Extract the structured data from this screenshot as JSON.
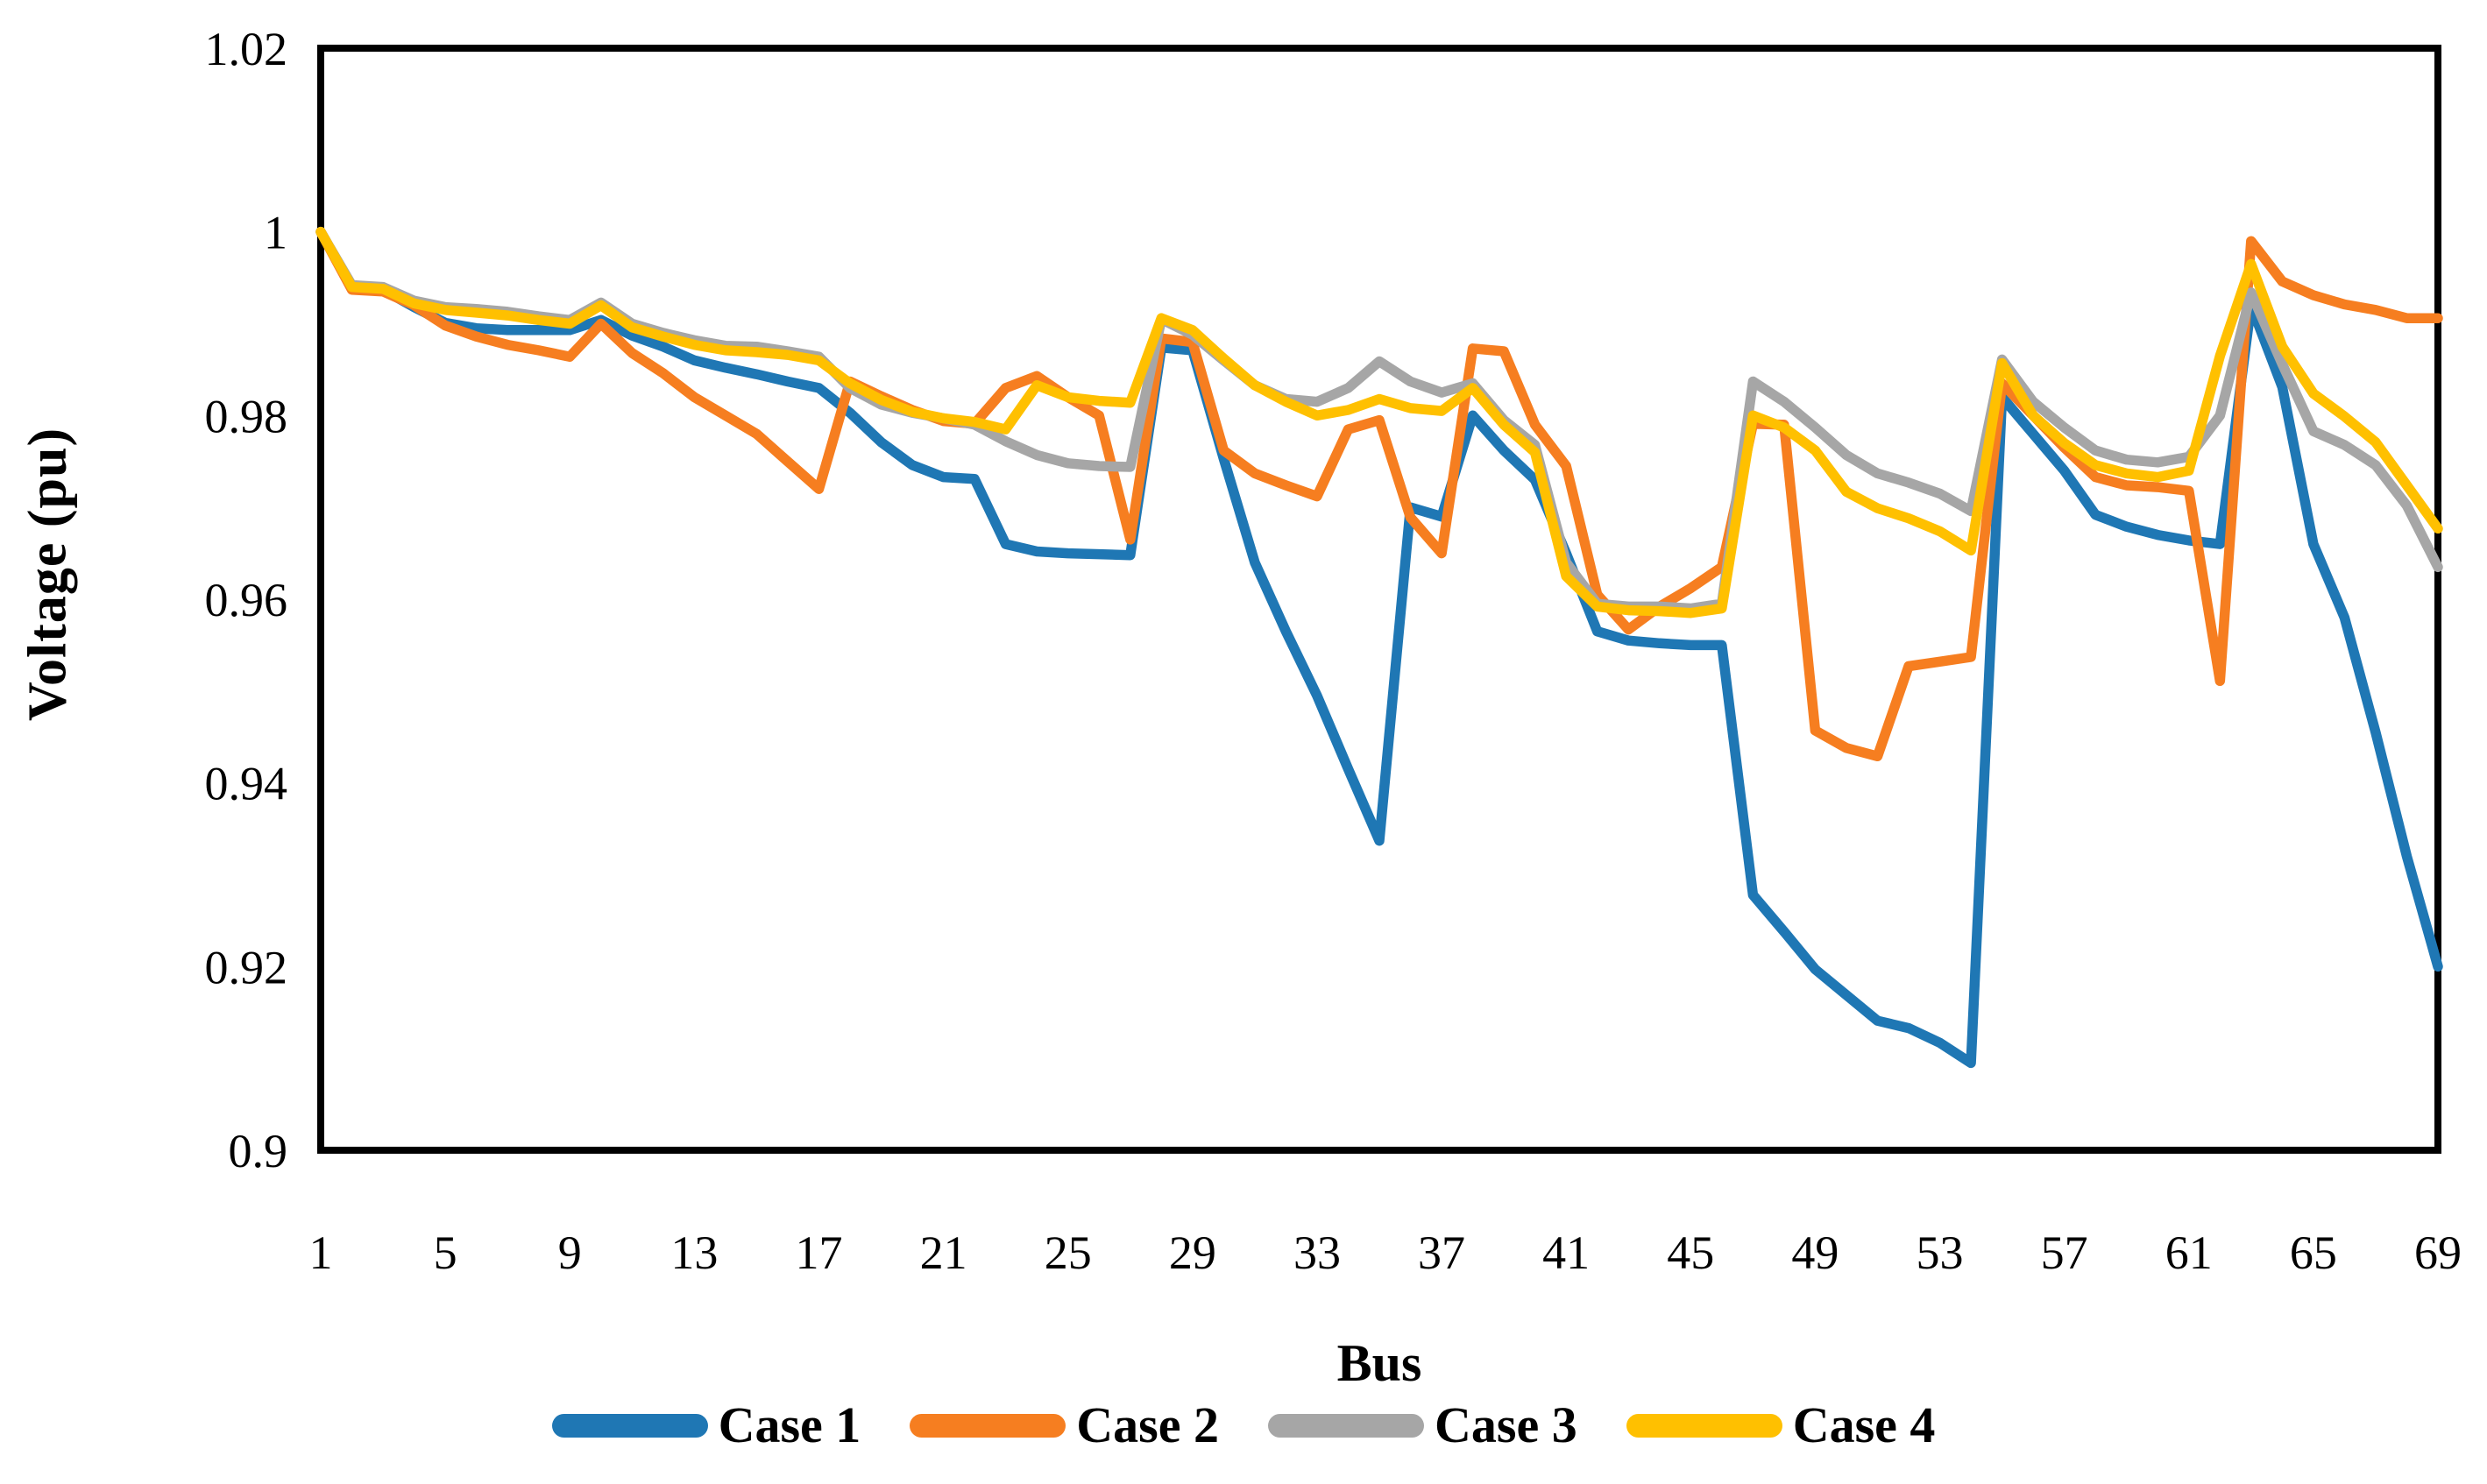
{
  "figure_title": "",
  "y_axis": {
    "title": "Voltage (pu)"
  },
  "x_axis": {
    "title": "Bus"
  },
  "chart_data": {
    "type": "line",
    "title": "",
    "xlabel": "Bus",
    "ylabel": "Voltage (pu)",
    "x_start": 1,
    "x_end": 69,
    "x_tick_values": [
      1,
      5,
      9,
      13,
      17,
      21,
      25,
      29,
      33,
      37,
      41,
      45,
      49,
      53,
      57,
      61,
      65,
      69
    ],
    "x_tick_labels": [
      "1",
      "5",
      "9",
      "13",
      "17",
      "21",
      "25",
      "29",
      "33",
      "37",
      "41",
      "45",
      "49",
      "53",
      "57",
      "61",
      "65",
      "69"
    ],
    "y_tick_values": [
      0.9,
      0.92,
      0.94,
      0.96,
      0.98,
      1.0,
      1.02
    ],
    "y_tick_labels": [
      "0.9",
      "0.92",
      "0.94",
      "0.96",
      "0.98",
      "1",
      "1.02"
    ],
    "ylim": [
      0.9,
      1.02
    ],
    "grid": false,
    "legend_position": "bottom",
    "plot_border_color": "#000000",
    "series": [
      {
        "name": "Case 1",
        "color": "#1F77B4",
        "values": [
          1.0,
          0.994,
          0.9937,
          0.9918,
          0.9901,
          0.9895,
          0.9893,
          0.9893,
          0.9893,
          0.9904,
          0.9887,
          0.9875,
          0.986,
          0.9852,
          0.9845,
          0.9837,
          0.983,
          0.9803,
          0.9771,
          0.9746,
          0.9733,
          0.9731,
          0.966,
          0.9652,
          0.965,
          0.9649,
          0.9648,
          0.9874,
          0.9871,
          0.9753,
          0.964,
          0.9565,
          0.9495,
          0.9415,
          0.9337,
          0.97,
          0.969,
          0.98,
          0.9762,
          0.973,
          0.965,
          0.9565,
          0.9555,
          0.9552,
          0.955,
          0.955,
          0.9278,
          0.9238,
          0.9197,
          0.9169,
          0.9141,
          0.9133,
          0.9117,
          0.9095,
          0.982,
          0.978,
          0.974,
          0.9692,
          0.9679,
          0.967,
          0.9664,
          0.966,
          0.992,
          0.9831,
          0.966,
          0.958,
          0.9455,
          0.932,
          0.92
        ]
      },
      {
        "name": "Case 2",
        "color": "#F67E20",
        "values": [
          1.0,
          0.9937,
          0.9935,
          0.992,
          0.9898,
          0.9886,
          0.9877,
          0.9871,
          0.9864,
          0.99,
          0.9868,
          0.9846,
          0.982,
          0.98,
          0.978,
          0.975,
          0.972,
          0.9837,
          0.9821,
          0.9806,
          0.9794,
          0.9791,
          0.983,
          0.9843,
          0.982,
          0.98,
          0.9665,
          0.9884,
          0.988,
          0.9762,
          0.9737,
          0.9724,
          0.9712,
          0.9785,
          0.9795,
          0.9689,
          0.965,
          0.9873,
          0.987,
          0.979,
          0.9745,
          0.9605,
          0.9567,
          0.9592,
          0.9612,
          0.9635,
          0.9791,
          0.979,
          0.9457,
          0.9438,
          0.9429,
          0.9527,
          0.9532,
          0.9537,
          0.9835,
          0.98,
          0.9765,
          0.9733,
          0.9724,
          0.9722,
          0.9718,
          0.9511,
          0.999,
          0.9946,
          0.9931,
          0.9921,
          0.9915,
          0.9906,
          0.9906
        ]
      },
      {
        "name": "Case 3",
        "color": "#A6A6A6",
        "values": [
          1.0,
          0.9942,
          0.994,
          0.9925,
          0.9918,
          0.9916,
          0.9913,
          0.9908,
          0.9904,
          0.9923,
          0.99,
          0.989,
          0.9882,
          0.9876,
          0.9875,
          0.987,
          0.9864,
          0.983,
          0.9812,
          0.9803,
          0.9797,
          0.979,
          0.9772,
          0.9757,
          0.9748,
          0.9745,
          0.9744,
          0.9905,
          0.9888,
          0.986,
          0.9833,
          0.9818,
          0.9815,
          0.983,
          0.9859,
          0.9837,
          0.9825,
          0.9835,
          0.9795,
          0.9768,
          0.964,
          0.9595,
          0.9592,
          0.9592,
          0.959,
          0.9595,
          0.9837,
          0.9815,
          0.9787,
          0.9757,
          0.9737,
          0.9727,
          0.9715,
          0.9696,
          0.9861,
          0.9815,
          0.9787,
          0.9762,
          0.9752,
          0.9749,
          0.9755,
          0.98,
          0.9934,
          0.9856,
          0.9783,
          0.9768,
          0.9746,
          0.9702,
          0.9635
        ]
      },
      {
        "name": "Case 4",
        "color": "#FFC000",
        "values": [
          1.0,
          0.994,
          0.9938,
          0.9922,
          0.9915,
          0.9912,
          0.9909,
          0.9904,
          0.99,
          0.992,
          0.9896,
          0.9886,
          0.9877,
          0.9871,
          0.9869,
          0.9866,
          0.986,
          0.9835,
          0.9817,
          0.9804,
          0.9797,
          0.9793,
          0.9785,
          0.9833,
          0.982,
          0.9816,
          0.9814,
          0.9906,
          0.9893,
          0.9862,
          0.9833,
          0.9815,
          0.98,
          0.9806,
          0.9818,
          0.9808,
          0.9805,
          0.983,
          0.979,
          0.976,
          0.9625,
          0.9592,
          0.9588,
          0.9587,
          0.9585,
          0.959,
          0.98,
          0.9787,
          0.9762,
          0.9717,
          0.9699,
          0.9688,
          0.9674,
          0.9653,
          0.9857,
          0.98,
          0.977,
          0.9746,
          0.9737,
          0.9733,
          0.974,
          0.9865,
          0.9965,
          0.9875,
          0.9824,
          0.9799,
          0.9771,
          0.9724,
          0.9677
        ]
      }
    ]
  }
}
